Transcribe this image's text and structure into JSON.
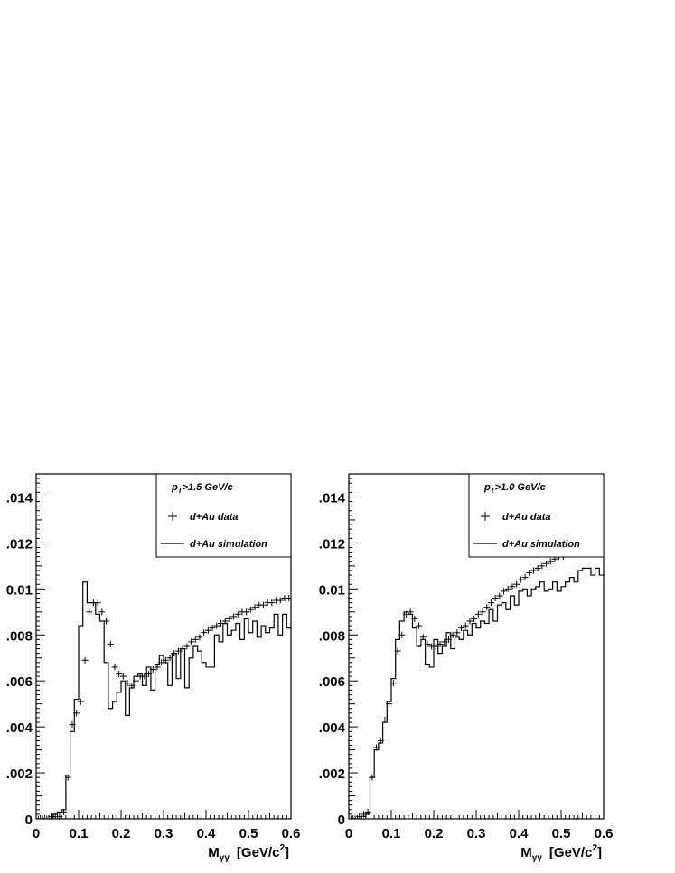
{
  "chart_data": [
    {
      "type": "scatter",
      "xlabel_main": "M",
      "xlabel_sub": "γγ",
      "xlabel_units": "[GeV/c",
      "xlabel_sup": "2",
      "xlabel_close": "]",
      "xlim": [
        0,
        0.6
      ],
      "ylim": [
        0,
        0.015
      ],
      "xticks": [
        0,
        0.1,
        0.2,
        0.3,
        0.4,
        0.5,
        0.6
      ],
      "xtick_labels": [
        "0",
        "0.1",
        "0.2",
        "0.3",
        "0.4",
        "0.5",
        "0.6"
      ],
      "yticks": [
        0,
        0.002,
        0.004,
        0.006,
        0.008,
        0.01,
        0.012,
        0.014
      ],
      "ytick_labels": [
        "0",
        ".002",
        ".004",
        ".006",
        ".008",
        "0.01",
        ".012",
        ".014"
      ],
      "grid": false,
      "legend": {
        "placement": "top-right",
        "cut_prefix": "p",
        "cut_sub": "T",
        "cut_value": ">1.5 GeV/c",
        "data_label": "d+Au data",
        "sim_label": "d+Au simulation"
      },
      "series": [
        {
          "name": "d+Au data",
          "kind": "points",
          "x": [
            0.005,
            0.015,
            0.025,
            0.035,
            0.045,
            0.055,
            0.065,
            0.075,
            0.085,
            0.095,
            0.105,
            0.115,
            0.125,
            0.135,
            0.145,
            0.155,
            0.165,
            0.175,
            0.185,
            0.195,
            0.205,
            0.215,
            0.225,
            0.235,
            0.245,
            0.255,
            0.265,
            0.275,
            0.285,
            0.295,
            0.305,
            0.315,
            0.325,
            0.335,
            0.345,
            0.355,
            0.365,
            0.375,
            0.385,
            0.395,
            0.405,
            0.415,
            0.425,
            0.435,
            0.445,
            0.455,
            0.465,
            0.475,
            0.485,
            0.495,
            0.505,
            0.515,
            0.525,
            0.535,
            0.545,
            0.555,
            0.565,
            0.575,
            0.585,
            0.595
          ],
          "y": [
            0.0,
            0.0,
            0.0,
            0.0001,
            0.0001,
            0.0001,
            0.0003,
            0.0018,
            0.0041,
            0.0046,
            0.0051,
            0.0069,
            0.009,
            0.0094,
            0.0094,
            0.009,
            0.0086,
            0.0076,
            0.0066,
            0.0063,
            0.0062,
            0.0059,
            0.0058,
            0.006,
            0.0062,
            0.0062,
            0.0063,
            0.0065,
            0.0066,
            0.0068,
            0.0069,
            0.007,
            0.0072,
            0.0073,
            0.0074,
            0.0075,
            0.0077,
            0.0078,
            0.0079,
            0.0081,
            0.0082,
            0.0083,
            0.0084,
            0.0085,
            0.0086,
            0.0087,
            0.0088,
            0.0089,
            0.009,
            0.009,
            0.0091,
            0.0092,
            0.0093,
            0.0093,
            0.0094,
            0.0094,
            0.0095,
            0.0095,
            0.0096,
            0.0096
          ]
        },
        {
          "name": "d+Au simulation",
          "kind": "histogram",
          "x": [
            0.005,
            0.015,
            0.025,
            0.035,
            0.045,
            0.055,
            0.065,
            0.075,
            0.085,
            0.095,
            0.105,
            0.115,
            0.125,
            0.135,
            0.145,
            0.155,
            0.165,
            0.175,
            0.185,
            0.195,
            0.205,
            0.215,
            0.225,
            0.235,
            0.245,
            0.255,
            0.265,
            0.275,
            0.285,
            0.295,
            0.305,
            0.315,
            0.325,
            0.335,
            0.345,
            0.355,
            0.365,
            0.375,
            0.385,
            0.395,
            0.405,
            0.415,
            0.425,
            0.435,
            0.445,
            0.455,
            0.465,
            0.475,
            0.485,
            0.495,
            0.505,
            0.515,
            0.525,
            0.535,
            0.545,
            0.555,
            0.565,
            0.575,
            0.585,
            0.595
          ],
          "y": [
            0.0,
            0.0,
            0.0,
            0.0,
            0.0002,
            0.0003,
            0.0004,
            0.0019,
            0.0038,
            0.0052,
            0.0084,
            0.0103,
            0.0094,
            0.0094,
            0.0089,
            0.0086,
            0.0068,
            0.0048,
            0.0051,
            0.0055,
            0.006,
            0.0045,
            0.0057,
            0.0062,
            0.0063,
            0.0058,
            0.0066,
            0.0056,
            0.0067,
            0.0071,
            0.0068,
            0.0058,
            0.0072,
            0.0061,
            0.0074,
            0.0057,
            0.007,
            0.0075,
            0.0073,
            0.0068,
            0.0066,
            0.0066,
            0.008,
            0.0077,
            0.0085,
            0.008,
            0.0082,
            0.0085,
            0.0078,
            0.0087,
            0.0081,
            0.0086,
            0.0079,
            0.0084,
            0.0081,
            0.0083,
            0.0089,
            0.008,
            0.0089,
            0.0083
          ]
        }
      ]
    },
    {
      "type": "scatter",
      "xlabel_main": "M",
      "xlabel_sub": "γγ",
      "xlabel_units": "[GeV/c",
      "xlabel_sup": "2",
      "xlabel_close": "]",
      "xlim": [
        0,
        0.6
      ],
      "ylim": [
        0,
        0.015
      ],
      "xticks": [
        0,
        0.1,
        0.2,
        0.3,
        0.4,
        0.5,
        0.6
      ],
      "xtick_labels": [
        "0",
        "0.1",
        "0.2",
        "0.3",
        "0.4",
        "0.5",
        "0.6"
      ],
      "yticks": [
        0,
        0.002,
        0.004,
        0.006,
        0.008,
        0.01,
        0.012,
        0.014
      ],
      "ytick_labels": [
        "0",
        ".002",
        ".004",
        ".006",
        ".008",
        "0.01",
        ".012",
        ".014"
      ],
      "grid": false,
      "legend": {
        "placement": "top-right",
        "cut_prefix": "p",
        "cut_sub": "T",
        "cut_value": ">1.0 GeV/c",
        "data_label": "d+Au data",
        "sim_label": "d+Au simulation"
      },
      "series": [
        {
          "name": "d+Au data",
          "kind": "points",
          "x": [
            0.005,
            0.015,
            0.025,
            0.035,
            0.045,
            0.055,
            0.065,
            0.075,
            0.085,
            0.095,
            0.105,
            0.115,
            0.125,
            0.135,
            0.145,
            0.155,
            0.165,
            0.175,
            0.185,
            0.195,
            0.205,
            0.215,
            0.225,
            0.235,
            0.245,
            0.255,
            0.265,
            0.275,
            0.285,
            0.295,
            0.305,
            0.315,
            0.325,
            0.335,
            0.345,
            0.355,
            0.365,
            0.375,
            0.385,
            0.395,
            0.405,
            0.415,
            0.425,
            0.435,
            0.445,
            0.455,
            0.465,
            0.475,
            0.485,
            0.495,
            0.505,
            0.515,
            0.525,
            0.535,
            0.545,
            0.555,
            0.565,
            0.575,
            0.585,
            0.595
          ],
          "y": [
            0.0,
            0.0,
            0.0001,
            0.0002,
            0.0003,
            0.0018,
            0.0031,
            0.0034,
            0.0043,
            0.005,
            0.0059,
            0.0073,
            0.008,
            0.0089,
            0.009,
            0.0087,
            0.0084,
            0.0079,
            0.0076,
            0.0075,
            0.0075,
            0.0076,
            0.0077,
            0.0078,
            0.008,
            0.0081,
            0.0083,
            0.0084,
            0.0086,
            0.0087,
            0.0089,
            0.009,
            0.0092,
            0.0094,
            0.0096,
            0.0097,
            0.0099,
            0.01,
            0.0101,
            0.0102,
            0.0104,
            0.0105,
            0.0107,
            0.0108,
            0.0109,
            0.011,
            0.0111,
            0.0112,
            0.0113,
            0.0114,
            0.0114,
            0.0115,
            0.0116,
            0.0116,
            0.0117,
            0.0117,
            0.0118,
            0.0118,
            0.0119,
            0.0119
          ]
        },
        {
          "name": "d+Au simulation",
          "kind": "histogram",
          "x": [
            0.005,
            0.015,
            0.025,
            0.035,
            0.045,
            0.055,
            0.065,
            0.075,
            0.085,
            0.095,
            0.105,
            0.115,
            0.125,
            0.135,
            0.145,
            0.155,
            0.165,
            0.175,
            0.185,
            0.195,
            0.205,
            0.215,
            0.225,
            0.235,
            0.245,
            0.255,
            0.265,
            0.275,
            0.285,
            0.295,
            0.305,
            0.315,
            0.325,
            0.335,
            0.345,
            0.355,
            0.365,
            0.375,
            0.385,
            0.395,
            0.405,
            0.415,
            0.425,
            0.435,
            0.445,
            0.455,
            0.465,
            0.475,
            0.485,
            0.495,
            0.505,
            0.515,
            0.525,
            0.535,
            0.545,
            0.555,
            0.565,
            0.575,
            0.585,
            0.595
          ],
          "y": [
            0.0,
            0.0,
            0.0,
            0.0001,
            0.0002,
            0.0018,
            0.003,
            0.0033,
            0.0042,
            0.0051,
            0.0061,
            0.0078,
            0.0086,
            0.009,
            0.0089,
            0.0083,
            0.0075,
            0.0078,
            0.0067,
            0.0066,
            0.0078,
            0.0072,
            0.0075,
            0.0081,
            0.0074,
            0.0079,
            0.0078,
            0.0082,
            0.008,
            0.0085,
            0.0083,
            0.0086,
            0.0085,
            0.0091,
            0.0086,
            0.0093,
            0.0094,
            0.0091,
            0.0097,
            0.0093,
            0.0099,
            0.01,
            0.0097,
            0.01,
            0.0101,
            0.0103,
            0.0099,
            0.01,
            0.0103,
            0.0099,
            0.0101,
            0.0103,
            0.0105,
            0.0103,
            0.0108,
            0.0109,
            0.0109,
            0.0106,
            0.0109,
            0.0106
          ]
        }
      ]
    }
  ]
}
